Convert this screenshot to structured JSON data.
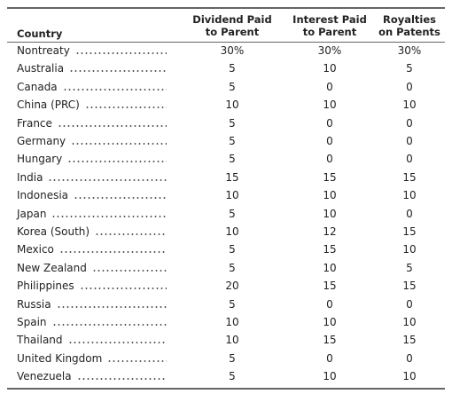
{
  "table": {
    "columns": [
      "Country",
      "Dividend Paid to Parent",
      "Interest Paid to Parent",
      "Royalties on Patents"
    ],
    "rows": [
      [
        "Nontreaty",
        "30%",
        "30%",
        "30%"
      ],
      [
        "Australia",
        "5",
        "10",
        "5"
      ],
      [
        "Canada",
        "5",
        "0",
        "0"
      ],
      [
        "China (PRC)",
        "10",
        "10",
        "10"
      ],
      [
        "France",
        "5",
        "0",
        "0"
      ],
      [
        "Germany",
        "5",
        "0",
        "0"
      ],
      [
        "Hungary",
        "5",
        "0",
        "0"
      ],
      [
        "India",
        "15",
        "15",
        "15"
      ],
      [
        "Indonesia",
        "10",
        "10",
        "10"
      ],
      [
        "Japan",
        "5",
        "10",
        "0"
      ],
      [
        "Korea (South)",
        "10",
        "12",
        "15"
      ],
      [
        "Mexico",
        "5",
        "15",
        "10"
      ],
      [
        "New Zealand",
        "5",
        "10",
        "5"
      ],
      [
        "Philippines",
        "20",
        "15",
        "15"
      ],
      [
        "Russia",
        "5",
        "0",
        "0"
      ],
      [
        "Spain",
        "10",
        "10",
        "10"
      ],
      [
        "Thailand",
        "10",
        "15",
        "15"
      ],
      [
        "United Kingdom",
        "5",
        "0",
        "0"
      ],
      [
        "Venezuela",
        "5",
        "10",
        "10"
      ]
    ]
  }
}
